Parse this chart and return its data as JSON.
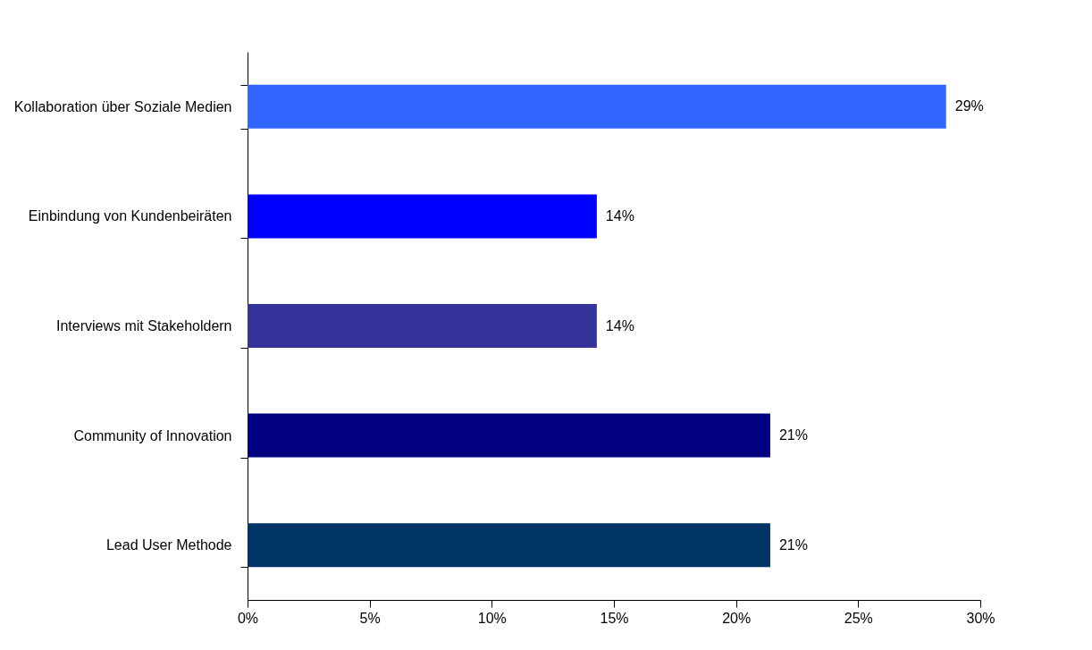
{
  "chart_data": {
    "type": "bar",
    "orientation": "horizontal",
    "categories": [
      "Kollaboration über Soziale Medien",
      "Einbindung von Kundenbeiräten",
      "Interviews mit Stakeholdern",
      "Community of Innovation",
      "Lead User Methode"
    ],
    "values": [
      28.6,
      14.3,
      14.3,
      21.4,
      21.4
    ],
    "colors": [
      "#3366ff",
      "#0000ff",
      "#333399",
      "#000080",
      "#003366"
    ],
    "value_labels": [
      "29%",
      "14%",
      "14%",
      "21%",
      "21%"
    ],
    "xlim": [
      0,
      30
    ],
    "xticks": [
      {
        "value": 0,
        "label": "0%"
      },
      {
        "value": 5,
        "label": "5%"
      },
      {
        "value": 10,
        "label": "10%"
      },
      {
        "value": 15,
        "label": "15%"
      },
      {
        "value": 20,
        "label": "20%"
      },
      {
        "value": 25,
        "label": "25%"
      },
      {
        "value": 30,
        "label": "30%"
      }
    ],
    "grid": false
  }
}
